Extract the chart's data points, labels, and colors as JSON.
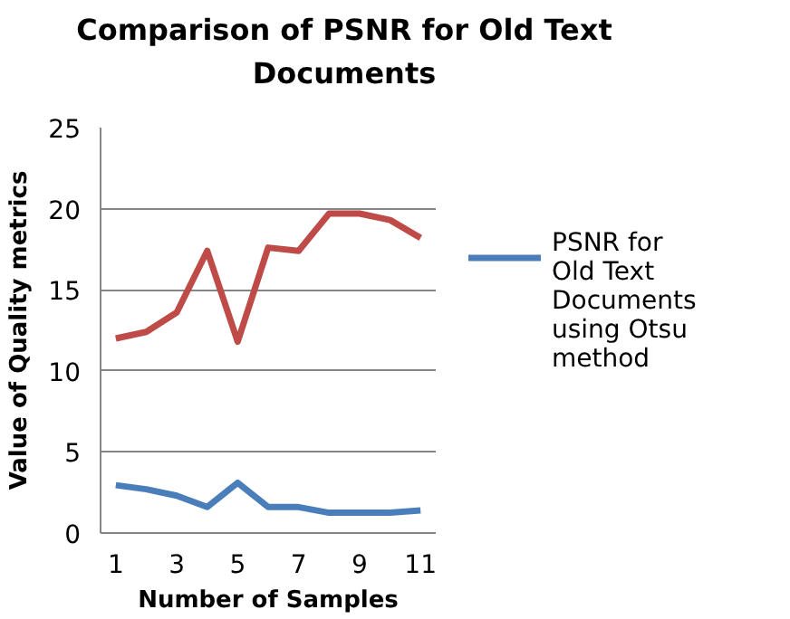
{
  "chart_data": {
    "type": "line",
    "title": "Comparison of PSNR for Old Text Documents",
    "xlabel": "Number of Samples",
    "ylabel": "Value of Quality metrics",
    "categories": [
      "1",
      null,
      "3",
      null,
      "5",
      null,
      "7",
      null,
      "9",
      null,
      "11"
    ],
    "ylim": [
      0,
      25
    ],
    "yticks": [
      0,
      5,
      10,
      15,
      20,
      25
    ],
    "grid": "y",
    "legend": "right",
    "series": [
      {
        "name": "PSNR for Old Text Documents  using Otsu method",
        "color": "#4a7ebb",
        "values": [
          2.95,
          2.7,
          2.3,
          1.6,
          3.1,
          1.6,
          1.6,
          1.25,
          1.25,
          1.25,
          1.4
        ]
      },
      {
        "color": "#be4b48",
        "values": [
          12.0,
          12.4,
          13.6,
          17.4,
          11.8,
          17.6,
          17.4,
          19.7,
          19.7,
          19.3,
          18.2
        ]
      }
    ]
  }
}
